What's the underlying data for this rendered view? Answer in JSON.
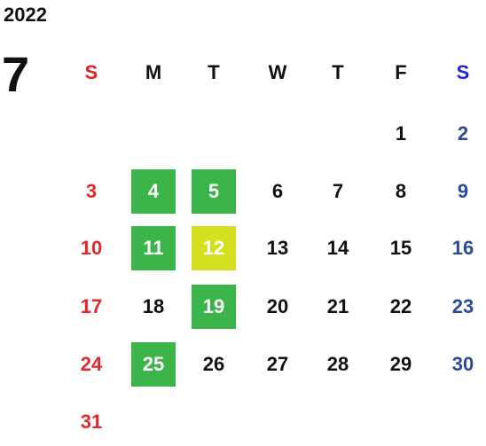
{
  "year": "2022",
  "month": "7",
  "weekdays": [
    "S",
    "M",
    "T",
    "W",
    "T",
    "F",
    "S"
  ],
  "colors": {
    "sunday": "#e02a2a",
    "saturday": "#2a4a9a",
    "green_highlight": "#3bb54a",
    "yellow_highlight": "#d4e01f"
  },
  "weeks": [
    [
      null,
      null,
      null,
      null,
      null,
      "1",
      "2"
    ],
    [
      "3",
      "4",
      "5",
      "6",
      "7",
      "8",
      "9"
    ],
    [
      "10",
      "11",
      "12",
      "13",
      "14",
      "15",
      "16"
    ],
    [
      "17",
      "18",
      "19",
      "20",
      "21",
      "22",
      "23"
    ],
    [
      "24",
      "25",
      "26",
      "27",
      "28",
      "29",
      "30"
    ],
    [
      "31",
      null,
      null,
      null,
      null,
      null,
      null
    ]
  ],
  "highlights": {
    "green": [
      "4",
      "5",
      "11",
      "19",
      "25"
    ],
    "yellow": [
      "12"
    ]
  }
}
